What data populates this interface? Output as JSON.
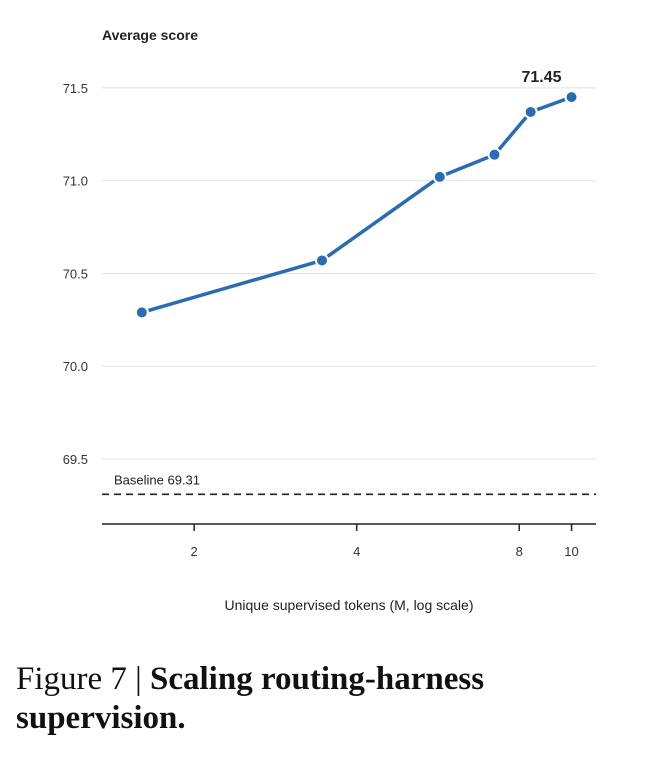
{
  "chart_data": {
    "type": "line",
    "ylabel": "Average score",
    "xlabel": "Unique supervised tokens (M, log scale)",
    "x_scale": "log",
    "xlim": [
      1.35,
      11.1
    ],
    "ylim": [
      69.15,
      71.65
    ],
    "x_ticks": [
      2,
      4,
      8,
      10
    ],
    "x_tick_labels": [
      "2",
      "4",
      "8",
      "10"
    ],
    "y_ticks": [
      69.5,
      70.0,
      70.5,
      71.0,
      71.5
    ],
    "y_tick_labels": [
      "69.5",
      "70.0",
      "70.5",
      "71.0",
      "71.5"
    ],
    "grid": "horizontal",
    "series": [
      {
        "x": [
          1.6,
          3.45,
          5.7,
          7.2,
          8.4,
          10.0
        ],
        "y": [
          70.29,
          70.57,
          71.02,
          71.14,
          71.37,
          71.45
        ]
      }
    ],
    "baseline": {
      "value": 69.31,
      "label": "Baseline 69.31"
    },
    "peak_annotation": "71.45",
    "line_color": "#2b6cb0"
  },
  "caption": {
    "prefix": "Figure 7 | ",
    "bold": "Scaling routing-harness supervision."
  }
}
